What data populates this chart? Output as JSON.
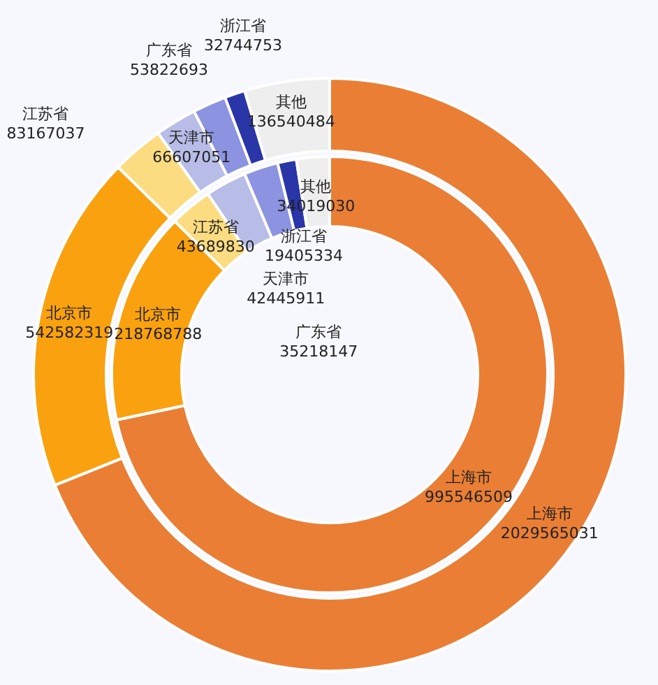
{
  "chart_data": {
    "type": "donut",
    "categories": [
      "上海市",
      "北京市",
      "江苏省",
      "天津市",
      "广东省",
      "浙江省",
      "其他"
    ],
    "colors": [
      "#ea7e34",
      "#f9a10f",
      "#fcdc80",
      "#b8bde8",
      "#8c93e0",
      "#2a35a8",
      "#eeeeee"
    ],
    "series": [
      {
        "values": [
          2029565031,
          542582319,
          83167037,
          66607051,
          53822693,
          32744753,
          136540484
        ]
      },
      {
        "values": [
          995546509,
          218768788,
          43689830,
          42445911,
          35218147,
          19405334,
          34019030
        ]
      }
    ],
    "data_labels": true,
    "legend": false
  }
}
